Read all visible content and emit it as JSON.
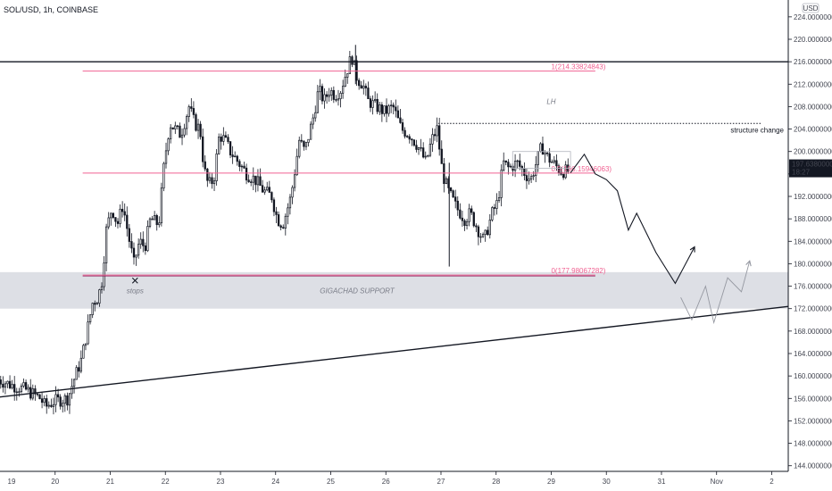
{
  "header": {
    "symbol_line": "SOL/USD, 1h, COINBASE"
  },
  "currency": "USD",
  "price_tag": {
    "price": "197.63800000",
    "countdown": "18:27",
    "value": 197.638
  },
  "colors": {
    "up": "#131722",
    "down": "#131722",
    "pink": "#f06292",
    "zone": "#d1d4dc",
    "axis_text": "#434651",
    "price_tag_bg": "#131722"
  },
  "chart_data": {
    "type": "candlestick",
    "title": "",
    "ylim": [
      143.0,
      227.0
    ],
    "yticks": [
      "144.00000000",
      "148.00000000",
      "152.00000000",
      "156.00000000",
      "160.00000000",
      "164.00000000",
      "168.00000000",
      "172.00000000",
      "176.00000000",
      "180.00000000",
      "184.00000000",
      "188.00000000",
      "192.00000000",
      "196.00000000",
      "200.00000000",
      "204.00000000",
      "208.00000000",
      "212.00000000",
      "216.00000000",
      "220.00000000",
      "224.00000000"
    ],
    "ytick_values": [
      144,
      148,
      152,
      156,
      160,
      164,
      168,
      172,
      176,
      180,
      184,
      188,
      192,
      196,
      200,
      204,
      208,
      212,
      216,
      220,
      224
    ],
    "x_range_days": [
      19.0,
      33.3
    ],
    "xticks": [
      {
        "label": "19",
        "day": 19
      },
      {
        "label": "20",
        "day": 20
      },
      {
        "label": "21",
        "day": 21
      },
      {
        "label": "22",
        "day": 22
      },
      {
        "label": "23",
        "day": 23
      },
      {
        "label": "24",
        "day": 24
      },
      {
        "label": "25",
        "day": 25
      },
      {
        "label": "26",
        "day": 26
      },
      {
        "label": "27",
        "day": 27
      },
      {
        "label": "28",
        "day": 28
      },
      {
        "label": "29",
        "day": 29
      },
      {
        "label": "30",
        "day": 30
      },
      {
        "label": "31",
        "day": 31
      },
      {
        "label": "Nov",
        "day": 32
      },
      {
        "label": "2",
        "day": 33
      }
    ],
    "price_path": [
      [
        18.95,
        159.5
      ],
      [
        19.2,
        158.5
      ],
      [
        19.5,
        157.5
      ],
      [
        19.75,
        156.0
      ],
      [
        19.85,
        154.5
      ],
      [
        20.0,
        155.5
      ],
      [
        20.25,
        156.0
      ],
      [
        20.35,
        159.0
      ],
      [
        20.5,
        163.0
      ],
      [
        20.6,
        168.0
      ],
      [
        20.7,
        173.0
      ],
      [
        20.8,
        174.0
      ],
      [
        20.87,
        177.0
      ],
      [
        20.95,
        186.0
      ],
      [
        21.05,
        190.0
      ],
      [
        21.15,
        187.0
      ],
      [
        21.25,
        190.5
      ],
      [
        21.35,
        185.0
      ],
      [
        21.45,
        180.0
      ],
      [
        21.55,
        184.0
      ],
      [
        21.65,
        183.0
      ],
      [
        21.75,
        188.0
      ],
      [
        21.9,
        187.0
      ],
      [
        22.0,
        198.0
      ],
      [
        22.1,
        205.0
      ],
      [
        22.2,
        204.0
      ],
      [
        22.3,
        203.0
      ],
      [
        22.45,
        208.0
      ],
      [
        22.55,
        205.0
      ],
      [
        22.65,
        204.0
      ],
      [
        22.72,
        197.0
      ],
      [
        22.8,
        194.0
      ],
      [
        22.9,
        195.0
      ],
      [
        23.0,
        203.0
      ],
      [
        23.1,
        202.0
      ],
      [
        23.2,
        200.0
      ],
      [
        23.35,
        198.0
      ],
      [
        23.5,
        196.0
      ],
      [
        23.65,
        195.0
      ],
      [
        23.8,
        193.0
      ],
      [
        23.95,
        192.0
      ],
      [
        24.05,
        188.0
      ],
      [
        24.15,
        187.0
      ],
      [
        24.3,
        192.0
      ],
      [
        24.45,
        202.0
      ],
      [
        24.55,
        200.0
      ],
      [
        24.7,
        206.0
      ],
      [
        24.8,
        211.0
      ],
      [
        24.9,
        209.0
      ],
      [
        25.0,
        211.0
      ],
      [
        25.1,
        210.0
      ],
      [
        25.2,
        211.0
      ],
      [
        25.3,
        214.0
      ],
      [
        25.4,
        217.0
      ],
      [
        25.5,
        213.0
      ],
      [
        25.6,
        212.0
      ],
      [
        25.7,
        209.0
      ],
      [
        25.85,
        208.0
      ],
      [
        26.0,
        207.0
      ],
      [
        26.15,
        208.0
      ],
      [
        26.3,
        204.0
      ],
      [
        26.45,
        203.0
      ],
      [
        26.6,
        201.0
      ],
      [
        26.75,
        198.0
      ],
      [
        26.85,
        202.0
      ],
      [
        26.95,
        204.0
      ],
      [
        27.05,
        196.0
      ],
      [
        27.15,
        193.0
      ],
      [
        27.3,
        190.0
      ],
      [
        27.45,
        188.0
      ],
      [
        27.55,
        189.0
      ],
      [
        27.7,
        186.0
      ],
      [
        27.8,
        184.0
      ],
      [
        27.95,
        189.0
      ],
      [
        28.05,
        191.0
      ],
      [
        28.15,
        198.0
      ],
      [
        28.25,
        197.0
      ],
      [
        28.4,
        198.0
      ],
      [
        28.55,
        196.0
      ],
      [
        28.65,
        195.0
      ],
      [
        28.75,
        198.0
      ],
      [
        28.85,
        201.0
      ],
      [
        28.95,
        199.0
      ],
      [
        29.05,
        198.0
      ],
      [
        29.2,
        196.5
      ],
      [
        29.3,
        196.5
      ]
    ],
    "levels": {
      "top_black": 216.0,
      "fib_1": {
        "label": "1(214.33824843)",
        "value": 214.338
      },
      "fib_05": {
        "label": "0.5(196.15946063)",
        "value": 196.159
      },
      "fib_0": {
        "label": "0(177.98067282)",
        "value": 177.981
      },
      "structure_change": {
        "label": "structure change",
        "value": 205.0
      },
      "lh": {
        "label": "LH",
        "day": 29.0,
        "value": 208.5
      }
    },
    "support_zone": {
      "label": "GIGACHAD SUPPORT",
      "low": 172.0,
      "high": 178.5
    },
    "trendline": [
      [
        18.95,
        156.2
      ],
      [
        33.4,
        172.5
      ]
    ],
    "stops": {
      "label": "stops",
      "day": 21.45,
      "value": 177.0
    },
    "projection_primary": [
      [
        29.35,
        196.2
      ],
      [
        29.6,
        199.5
      ],
      [
        29.8,
        196.0
      ],
      [
        30.0,
        195.0
      ],
      [
        30.2,
        193.0
      ],
      [
        30.4,
        186.0
      ],
      [
        30.55,
        189.0
      ],
      [
        30.9,
        182.0
      ],
      [
        31.25,
        176.5
      ],
      [
        31.6,
        183.0
      ]
    ],
    "projection_alt": [
      [
        31.35,
        174.0
      ],
      [
        31.55,
        170.0
      ],
      [
        31.8,
        176.0
      ],
      [
        31.95,
        169.5
      ],
      [
        32.2,
        177.5
      ],
      [
        32.45,
        175.0
      ],
      [
        32.6,
        180.5
      ]
    ]
  }
}
